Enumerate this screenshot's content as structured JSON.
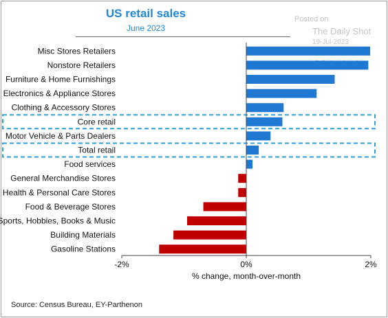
{
  "title": "US retail sales",
  "subtitle": "June 2023",
  "watermark": {
    "line1": "Posted on",
    "line2": "The Daily Shot",
    "line3": "19-Jul-2023",
    "line4": "@SoberLook"
  },
  "source": "Source: Census Bureau, EY-Parthenon",
  "chart_data": {
    "type": "bar",
    "orientation": "horizontal",
    "categories": [
      "Misc Stores Retailers",
      "Nonstore Retailers",
      "Furniture & Home Furnishings",
      "Electronics & Appliance Stores",
      "Clothing & Accessory Stores",
      "Core retail",
      "Motor Vehicle & Parts Dealers",
      "Total retail",
      "Food services",
      "General Merchandise Stores",
      "Health & Personal Care Stores",
      "Food & Beverage Stores",
      "Sports, Hobbies, Books & Music",
      "Building Materials",
      "Gasoline Stations"
    ],
    "values": [
      1.99,
      1.96,
      1.42,
      1.13,
      0.6,
      0.58,
      0.39,
      0.2,
      0.1,
      -0.13,
      -0.13,
      -0.69,
      -0.95,
      -1.17,
      -1.4
    ],
    "highlighted": [
      "Core retail",
      "Total retail"
    ],
    "xlabel": "% change, month-over-month",
    "ylabel": "",
    "xlim": [
      -2,
      2
    ],
    "xticks": [
      "-2%",
      "0%",
      "2%"
    ],
    "grid": false,
    "colors": {
      "positive": "#1f78d1",
      "negative": "#c00000",
      "highlight_box": "#2e9fd9"
    }
  }
}
